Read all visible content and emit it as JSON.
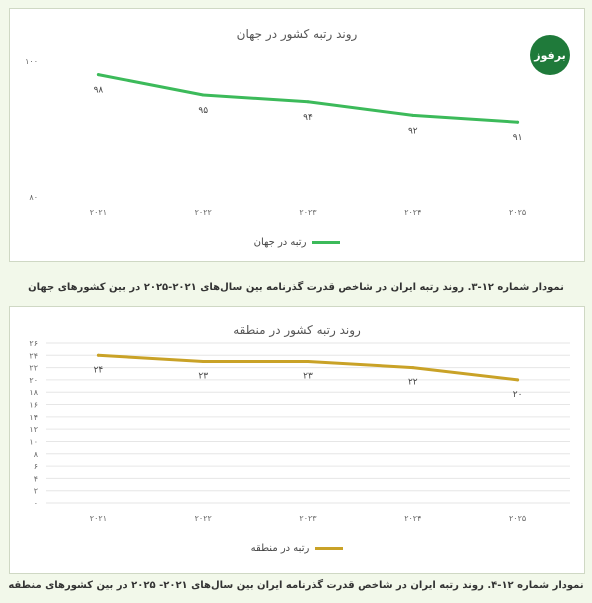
{
  "logo": {
    "text": "برفوز"
  },
  "chart_data": [
    {
      "type": "line",
      "title": "روند رتبه کشور در جهان",
      "x": [
        "۲۰۲۱",
        "۲۰۲۲",
        "۲۰۲۳",
        "۲۰۲۴",
        "۲۰۲۵"
      ],
      "series": [
        {
          "name": "رتبه در جهان",
          "values": [
            98,
            95,
            94,
            92,
            91
          ],
          "labels": [
            "۹۸",
            "۹۵",
            "۹۴",
            "۹۲",
            "۹۱"
          ],
          "color": "#3cba5a"
        }
      ],
      "yticks": [
        80,
        100
      ],
      "ytick_labels": [
        "۸۰",
        "۱۰۰"
      ],
      "ylim": [
        80,
        100
      ],
      "grid": false,
      "legend": "bottom",
      "caption": "نمودار شماره ۱۲-۳. روند رتبه ایران در شاخص قدرت گذرنامه بین سال‌های ۲۰۲۱-۲۰۲۵ در بین کشورهای جهان"
    },
    {
      "type": "line",
      "title": "روند رتبه کشور در منطقه",
      "x": [
        "۲۰۲۱",
        "۲۰۲۲",
        "۲۰۲۳",
        "۲۰۲۴",
        "۲۰۲۵"
      ],
      "series": [
        {
          "name": "رتبه در منطقه",
          "values": [
            24,
            23,
            23,
            22,
            20
          ],
          "labels": [
            "۲۴",
            "۲۳",
            "۲۳",
            "۲۲",
            "۲۰"
          ],
          "color": "#c9a227"
        }
      ],
      "yticks": [
        0,
        2,
        4,
        6,
        8,
        10,
        12,
        14,
        16,
        18,
        20,
        22,
        24,
        26
      ],
      "ytick_labels": [
        "۰",
        "۲",
        "۴",
        "۶",
        "۸",
        "۱۰",
        "۱۲",
        "۱۴",
        "۱۶",
        "۱۸",
        "۲۰",
        "۲۲",
        "۲۴",
        "۲۶"
      ],
      "ylim": [
        0,
        26
      ],
      "grid": true,
      "legend": "bottom",
      "caption": "نمودار شماره ۱۲-۴. روند رتبه ایران در شاخص قدرت گذرنامه ایران بین سال‌های ۲۰۲۱- ۲۰۲۵ در بین کشورهای منطقه"
    }
  ]
}
